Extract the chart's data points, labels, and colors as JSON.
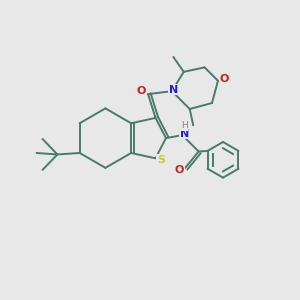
{
  "background_color": "#e8e8e8",
  "bond_color": "#4a7a6a",
  "atom_colors": {
    "N": "#2020cc",
    "O": "#cc2020",
    "S": "#cccc20",
    "H": "#888888",
    "C": "#4a7a6a"
  },
  "figsize": [
    3.0,
    3.0
  ],
  "dpi": 100
}
